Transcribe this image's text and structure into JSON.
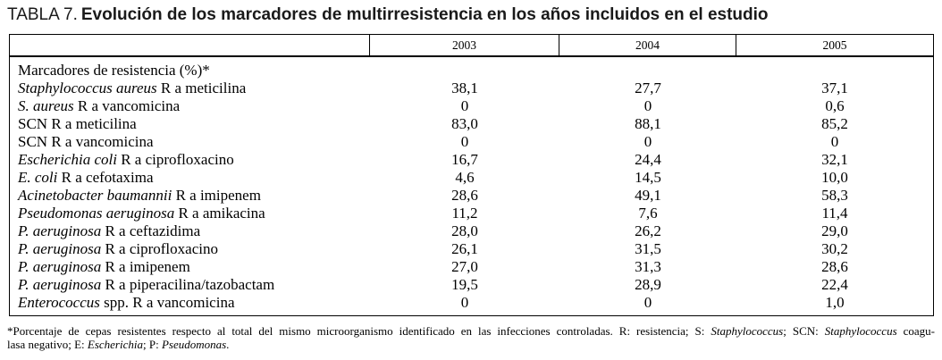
{
  "title": {
    "prefix": "TABLA 7.",
    "text": "Evolución de los marcadores de multirresistencia en los años incluidos en el estudio"
  },
  "table": {
    "columns": [
      "",
      "2003",
      "2004",
      "2005"
    ],
    "rows": [
      {
        "label": [
          {
            "t": "Marcadores de resistencia (%)*",
            "i": false
          }
        ],
        "values": [
          "",
          "",
          ""
        ]
      },
      {
        "label": [
          {
            "t": "Staphylococcus aureus",
            "i": true
          },
          {
            "t": " R a meticilina",
            "i": false
          }
        ],
        "values": [
          "38,1",
          "27,7",
          "37,1"
        ]
      },
      {
        "label": [
          {
            "t": "S. aureus",
            "i": true
          },
          {
            "t": " R a vancomicina",
            "i": false
          }
        ],
        "values": [
          "0",
          "0",
          "0,6"
        ]
      },
      {
        "label": [
          {
            "t": "SCN R a meticilina",
            "i": false
          }
        ],
        "values": [
          "83,0",
          "88,1",
          "85,2"
        ]
      },
      {
        "label": [
          {
            "t": "SCN R a vancomicina",
            "i": false
          }
        ],
        "values": [
          "0",
          "0",
          "0"
        ]
      },
      {
        "label": [
          {
            "t": "Escherichia coli",
            "i": true
          },
          {
            "t": " R a ciprofloxacino",
            "i": false
          }
        ],
        "values": [
          "16,7",
          "24,4",
          "32,1"
        ]
      },
      {
        "label": [
          {
            "t": "E. coli",
            "i": true
          },
          {
            "t": " R a cefotaxima",
            "i": false
          }
        ],
        "values": [
          "4,6",
          "14,5",
          "10,0"
        ]
      },
      {
        "label": [
          {
            "t": "Acinetobacter baumannii",
            "i": true
          },
          {
            "t": " R a imipenem",
            "i": false
          }
        ],
        "values": [
          "28,6",
          "49,1",
          "58,3"
        ]
      },
      {
        "label": [
          {
            "t": "Pseudomonas aeruginosa",
            "i": true
          },
          {
            "t": " R a amikacina",
            "i": false
          }
        ],
        "values": [
          "11,2",
          "7,6",
          "11,4"
        ]
      },
      {
        "label": [
          {
            "t": "P. aeruginosa",
            "i": true
          },
          {
            "t": " R a ceftazidima",
            "i": false
          }
        ],
        "values": [
          "28,0",
          "26,2",
          "29,0"
        ]
      },
      {
        "label": [
          {
            "t": "P. aeruginosa",
            "i": true
          },
          {
            "t": " R a ciprofloxacino",
            "i": false
          }
        ],
        "values": [
          "26,1",
          "31,5",
          "30,2"
        ]
      },
      {
        "label": [
          {
            "t": "P. aeruginosa",
            "i": true
          },
          {
            "t": " R a imipenem",
            "i": false
          }
        ],
        "values": [
          "27,0",
          "31,3",
          "28,6"
        ]
      },
      {
        "label": [
          {
            "t": "P. aeruginosa",
            "i": true
          },
          {
            "t": " R a piperacilina/tazobactam",
            "i": false
          }
        ],
        "values": [
          "19,5",
          "28,9",
          "22,4"
        ]
      },
      {
        "label": [
          {
            "t": "Enterococcus",
            "i": true
          },
          {
            "t": " spp. R a vancomicina",
            "i": false
          }
        ],
        "values": [
          "0",
          "0",
          "1,0"
        ]
      }
    ]
  },
  "footnote": {
    "lines": [
      [
        {
          "t": "*Porcentaje de cepas resistentes respecto al total del mismo microorganismo identificado en las infecciones controladas. R: resistencia; S: ",
          "i": false
        },
        {
          "t": "Staphylococcus",
          "i": true
        },
        {
          "t": "; SCN: ",
          "i": false
        },
        {
          "t": "Staphylococcus",
          "i": true
        },
        {
          "t": " coagu-",
          "i": false
        }
      ],
      [
        {
          "t": "lasa negativo; E: ",
          "i": false
        },
        {
          "t": "Escherichia",
          "i": true
        },
        {
          "t": "; P: ",
          "i": false
        },
        {
          "t": "Pseudomonas",
          "i": true
        },
        {
          "t": ".",
          "i": false
        }
      ]
    ]
  },
  "colors": {
    "background": "#ffffff",
    "text": "#000000",
    "border": "#000000"
  }
}
